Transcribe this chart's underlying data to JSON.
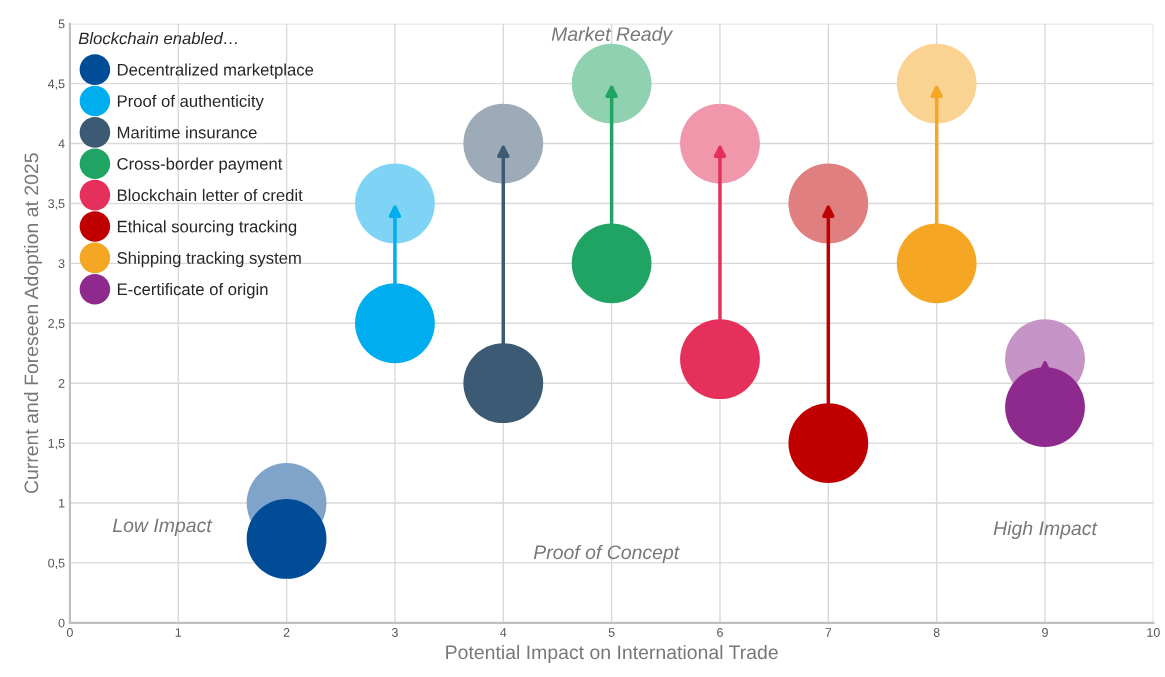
{
  "chart_data": {
    "type": "scatter",
    "xlabel": "Potential Impact on International Trade",
    "ylabel": "Current and Foreseen Adoption at 2025",
    "legend_title": "Blockchain enabled…",
    "legend": "top left",
    "grid": true,
    "marker": "circle",
    "xlim": [
      0,
      10
    ],
    "xticks": [
      0,
      1,
      2,
      3,
      4,
      5,
      6,
      7,
      8,
      9,
      10
    ],
    "ylim": [
      0,
      5
    ],
    "yticks": [
      0,
      {
        "value": 0.5,
        "label": "0,5"
      },
      1,
      {
        "value": 1.5,
        "label": "1,5"
      },
      2,
      {
        "value": 2.5,
        "label": "2,5"
      },
      3,
      {
        "value": 3.5,
        "label": "3,5"
      },
      4,
      {
        "value": 4.5,
        "label": "4,5"
      },
      5
    ],
    "annotations": [
      "Market Ready",
      "Low Impact",
      "Proof of Concept",
      "High Impact"
    ],
    "series": [
      {
        "name": "Decentralized marketplace",
        "color": "#004c97",
        "x": [
          2,
          2
        ],
        "values": [
          0.7,
          1.0
        ],
        "colors": [
          "#004c97",
          "#7fa3c9"
        ]
      },
      {
        "name": "Proof of authenticity",
        "color": "#00adee",
        "x": [
          3,
          3
        ],
        "values": [
          2.5,
          3.5
        ],
        "colors": [
          "#00adee",
          "#7fd3f5"
        ]
      },
      {
        "name": "Maritime insurance",
        "color": "#3c5a73",
        "x": [
          4,
          4
        ],
        "values": [
          2.0,
          4.0
        ],
        "colors": [
          "#3c5a73",
          "#9dabb8"
        ]
      },
      {
        "name": "Cross-border payment",
        "color": "#1fa463",
        "x": [
          5,
          5
        ],
        "values": [
          3.0,
          4.5
        ],
        "colors": [
          "#1fa463",
          "#8fd1b0"
        ]
      },
      {
        "name": "Blockchain letter of credit",
        "color": "#e4305a",
        "x": [
          6,
          6
        ],
        "values": [
          2.2,
          4.0
        ],
        "colors": [
          "#e4305a",
          "#f197ab"
        ]
      },
      {
        "name": "Ethical sourcing tracking",
        "color": "#c00000",
        "x": [
          7,
          7
        ],
        "values": [
          1.5,
          3.5
        ],
        "colors": [
          "#c00000",
          "#df7f7f"
        ]
      },
      {
        "name": "Shipping tracking system",
        "color": "#f5a623",
        "x": [
          8,
          8
        ],
        "values": [
          3.0,
          4.5
        ],
        "colors": [
          "#f5a623",
          "#fad291"
        ]
      },
      {
        "name": "E-certificate of origin",
        "color": "#8e2a8e",
        "x": [
          9,
          9
        ],
        "values": [
          1.8,
          2.2
        ],
        "colors": [
          "#8e2a8e",
          "#c694c6"
        ]
      }
    ]
  }
}
